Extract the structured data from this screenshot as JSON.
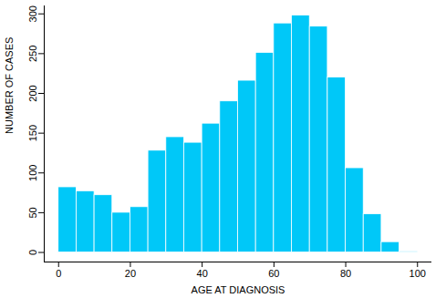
{
  "chart_data": {
    "type": "histogram",
    "x_label": "AGE AT DIAGNOSIS",
    "y_label": "NUMBER OF CASES",
    "bins": [
      0,
      5,
      10,
      15,
      20,
      25,
      30,
      35,
      40,
      45,
      50,
      55,
      60,
      65,
      70,
      75,
      80,
      85,
      90,
      95,
      100
    ],
    "values": [
      82,
      77,
      72,
      50,
      57,
      128,
      145,
      138,
      162,
      190,
      216,
      251,
      288,
      298,
      284,
      220,
      106,
      48,
      13,
      1
    ],
    "color": "#00c8f8",
    "xlim": [
      -4,
      104
    ],
    "xticks": [
      0,
      20,
      40,
      60,
      80,
      100
    ],
    "ylim": [
      -12,
      310
    ],
    "yticks": [
      0,
      50,
      100,
      150,
      200,
      250,
      300
    ],
    "grid": false
  }
}
